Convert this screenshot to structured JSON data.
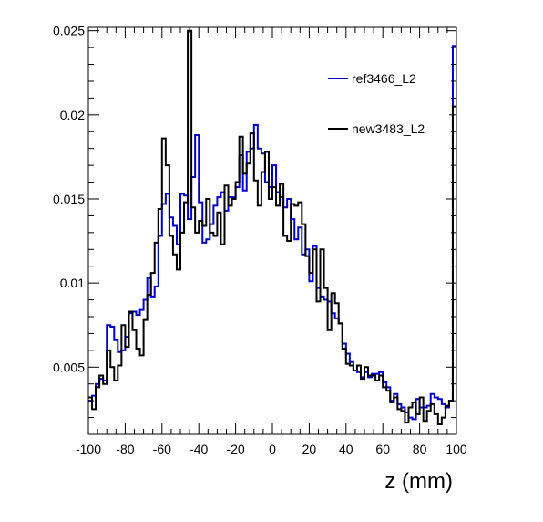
{
  "chart_data": {
    "type": "line",
    "title": "",
    "xlabel": "z (mm)",
    "ylabel": "",
    "xlim": [
      -100,
      100
    ],
    "ylim": [
      0.001,
      0.0252
    ],
    "x_ticks": [
      -100,
      -80,
      -60,
      -40,
      -20,
      0,
      20,
      40,
      60,
      80,
      100
    ],
    "x_tick_labels": [
      "-100",
      "-80",
      "-60",
      "-40",
      "-20",
      "0",
      "20",
      "40",
      "60",
      "80",
      "100"
    ],
    "y_ticks": [
      0.005,
      0.01,
      0.015,
      0.02,
      0.025
    ],
    "y_tick_labels": [
      "0.005",
      "0.01",
      "0.015",
      "0.02",
      "0.025"
    ],
    "grid": false,
    "legend_position": "top-right",
    "bin_edges_start": -100,
    "bin_width": 2,
    "series": [
      {
        "name": "ref3466_L2",
        "color": "#0000cc",
        "values": [
          0.003,
          0.0033,
          0.004,
          0.0043,
          0.0042,
          0.0075,
          0.0074,
          0.0066,
          0.0059,
          0.006,
          0.0068,
          0.0082,
          0.0083,
          0.0081,
          0.0084,
          0.009,
          0.0103,
          0.0092,
          0.0098,
          0.0128,
          0.0147,
          0.0153,
          0.0139,
          0.0134,
          0.0123,
          0.0153,
          0.0152,
          0.0138,
          0.0163,
          0.0188,
          0.0148,
          0.0124,
          0.0126,
          0.0135,
          0.0146,
          0.0151,
          0.0154,
          0.0143,
          0.0151,
          0.0151,
          0.0157,
          0.0176,
          0.0155,
          0.0178,
          0.018,
          0.0194,
          0.018,
          0.0177,
          0.016,
          0.0157,
          0.017,
          0.0154,
          0.0151,
          0.0145,
          0.015,
          0.0138,
          0.0126,
          0.0133,
          0.0117,
          0.012,
          0.0101,
          0.0122,
          0.0097,
          0.0092,
          0.009,
          0.0089,
          0.0082,
          0.0079,
          0.0076,
          0.0064,
          0.0058,
          0.0053,
          0.0048,
          0.0047,
          0.0044,
          0.0047,
          0.0044,
          0.0046,
          0.0046,
          0.0047,
          0.0041,
          0.0038,
          0.003,
          0.0034,
          0.0028,
          0.0026,
          0.0023,
          0.002,
          0.0019,
          0.0031,
          0.0026,
          0.0026,
          0.0027,
          0.0034,
          0.0032,
          0.0031,
          0.0028,
          0.0026,
          0.003,
          0.0241
        ]
      },
      {
        "name": "new3483_L2",
        "color": "#000000",
        "values": [
          0.0032,
          0.0025,
          0.0038,
          0.0045,
          0.004,
          0.006,
          0.005,
          0.0042,
          0.0051,
          0.0075,
          0.0062,
          0.0083,
          0.0072,
          0.0061,
          0.0057,
          0.0078,
          0.0093,
          0.0106,
          0.0124,
          0.0144,
          0.0186,
          0.017,
          0.0128,
          0.0117,
          0.0108,
          0.013,
          0.0148,
          0.025,
          0.0145,
          0.013,
          0.0137,
          0.0134,
          0.015,
          0.013,
          0.0128,
          0.0142,
          0.0123,
          0.0158,
          0.0146,
          0.015,
          0.016,
          0.0187,
          0.0165,
          0.0171,
          0.0189,
          0.0161,
          0.0146,
          0.0166,
          0.0178,
          0.015,
          0.0157,
          0.0146,
          0.0159,
          0.0128,
          0.0125,
          0.0147,
          0.0146,
          0.0148,
          0.0135,
          0.0116,
          0.0106,
          0.012,
          0.0089,
          0.012,
          0.0097,
          0.0072,
          0.0094,
          0.0088,
          0.0076,
          0.0061,
          0.0052,
          0.0051,
          0.0048,
          0.0051,
          0.0043,
          0.005,
          0.0045,
          0.0045,
          0.0042,
          0.0045,
          0.0038,
          0.0036,
          0.0029,
          0.0032,
          0.0025,
          0.0024,
          0.0017,
          0.0026,
          0.0029,
          0.0022,
          0.0032,
          0.0018,
          0.0024,
          0.0028,
          0.0022,
          0.0016,
          0.002,
          0.0027,
          0.003,
          0.0205
        ]
      }
    ]
  }
}
